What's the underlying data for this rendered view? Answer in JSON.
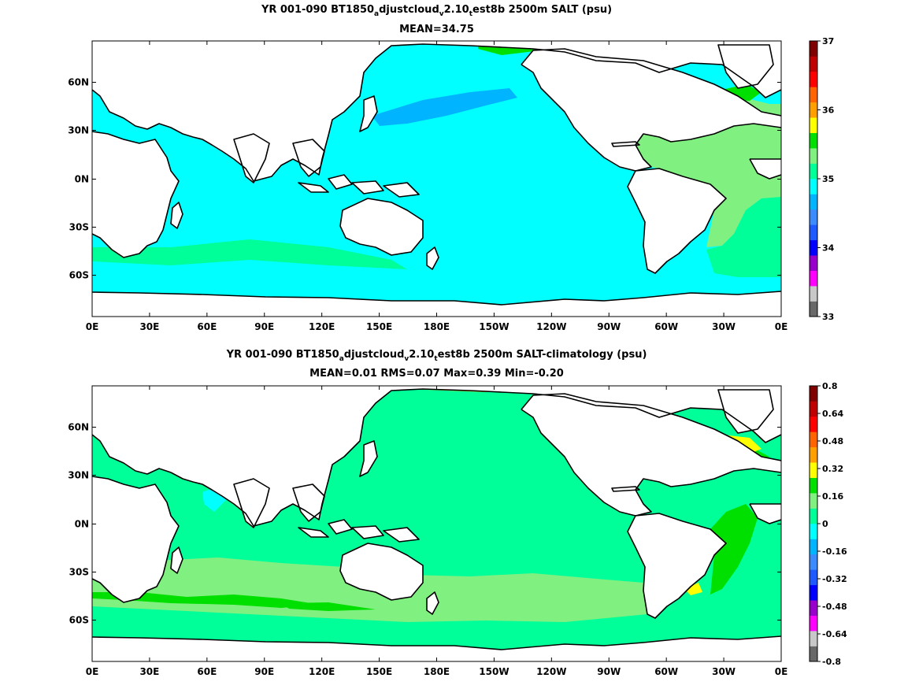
{
  "panels": [
    {
      "title": {
        "prefix": "YR 001-090 BT1850",
        "s1": "a",
        "mid1": "djustcloud",
        "s2": "v",
        "mid2": "2.10",
        "s3": "t",
        "suffix": "est8b 2500m SALT (psu)"
      },
      "stats": "MEAN=34.75",
      "colorbar": {
        "labels": [
          "37",
          "36",
          "35",
          "34",
          "33"
        ],
        "colors": [
          "#686868",
          "#c8c8c8",
          "#ff00ff",
          "#9900cc",
          "#0000ff",
          "#1e5aff",
          "#3c8cff",
          "#00b4ff",
          "#00ffff",
          "#00ff99",
          "#80f080",
          "#00e000",
          "#ffff00",
          "#ffa000",
          "#ff6400",
          "#ff0000",
          "#c00000",
          "#800000"
        ]
      }
    },
    {
      "title": {
        "prefix": "YR 001-090 BT1850",
        "s1": "a",
        "mid1": "djustcloud",
        "s2": "v",
        "mid2": "2.10",
        "s3": "t",
        "suffix": "est8b 2500m SALT-climatology (psu)"
      },
      "stats": "MEAN=0.01   RMS=0.07   Max=0.39   Min=-0.20",
      "colorbar": {
        "labels": [
          "0.8",
          "0.64",
          "0.48",
          "0.32",
          "0.16",
          "0",
          "-0.16",
          "-0.32",
          "-0.48",
          "-0.64",
          "-0.8"
        ],
        "colors": [
          "#686868",
          "#c8c8c8",
          "#ff00ff",
          "#9900cc",
          "#0000ff",
          "#1e5aff",
          "#3c8cff",
          "#00b4ff",
          "#00ffff",
          "#00ff99",
          "#80f080",
          "#00e000",
          "#ffff00",
          "#ffa000",
          "#ff6400",
          "#ff0000",
          "#c00000",
          "#800000"
        ]
      }
    }
  ],
  "map": {
    "lon_labels": [
      "0E",
      "30E",
      "60E",
      "90E",
      "120E",
      "150E",
      "180E",
      "150W",
      "120W",
      "90W",
      "60W",
      "30W",
      "0E"
    ],
    "lat_labels": [
      "60N",
      "30N",
      "0N",
      "30S",
      "60S"
    ],
    "colors": {
      "ocean_top": "#00ffff",
      "ocean_top_dark": "#00b4ff",
      "ocean_top_light": "#80f080",
      "ocean_top_green": "#00e000",
      "ocean_top_mid": "#00ff99",
      "ocean_bot": "#00ff99",
      "ocean_bot_light": "#80f080",
      "ocean_bot_green": "#00e000",
      "ocean_bot_yellow": "#ffff00",
      "ocean_bot_orange": "#ffa000",
      "ocean_bot_cyan": "#00ffff",
      "land": "#ffffff",
      "coast": "#000000"
    }
  }
}
